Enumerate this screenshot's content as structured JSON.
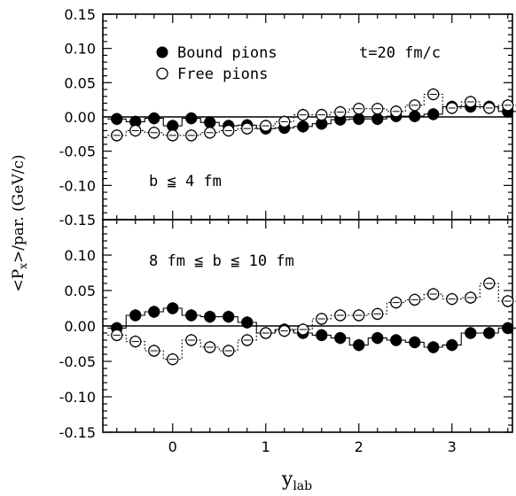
{
  "chart_data": [
    {
      "type": "scatter",
      "panel": "top",
      "xlim": [
        -0.75,
        3.65
      ],
      "ylim": [
        -0.15,
        0.15
      ],
      "y_ticks": [
        "0.15",
        "0.10",
        "0.05",
        "0.00",
        "-0.05",
        "-0.10",
        "-0.15"
      ],
      "x_ticks": [
        "0",
        "1",
        "2",
        "3"
      ],
      "legend": [
        {
          "name": "Bound pions",
          "marker": "filled-circle"
        },
        {
          "name": "Free pions",
          "marker": "open-circle"
        }
      ],
      "legend_placement": "top-right",
      "annotations": [
        "t=20 fm/c",
        "b ≦ 4 fm"
      ],
      "series": [
        {
          "name": "Bound pions",
          "marker": "filled",
          "x": [
            -0.6,
            -0.4,
            -0.2,
            0.0,
            0.2,
            0.4,
            0.6,
            0.8,
            1.0,
            1.2,
            1.4,
            1.6,
            1.8,
            2.0,
            2.2,
            2.4,
            2.6,
            2.8,
            3.0,
            3.2,
            3.4,
            3.6
          ],
          "y": [
            -0.003,
            -0.007,
            -0.002,
            -0.013,
            -0.002,
            -0.008,
            -0.013,
            -0.012,
            -0.017,
            -0.016,
            -0.014,
            -0.01,
            -0.004,
            -0.003,
            -0.003,
            0.001,
            0.001,
            0.004,
            0.015,
            0.015,
            0.015,
            0.008
          ]
        },
        {
          "name": "Free pions",
          "marker": "open",
          "x": [
            -0.6,
            -0.4,
            -0.2,
            0.0,
            0.2,
            0.4,
            0.6,
            0.8,
            1.0,
            1.2,
            1.4,
            1.6,
            1.8,
            2.0,
            2.2,
            2.4,
            2.6,
            2.8,
            3.0,
            3.2,
            3.4,
            3.6
          ],
          "y": [
            -0.027,
            -0.02,
            -0.023,
            -0.027,
            -0.027,
            -0.023,
            -0.02,
            -0.017,
            -0.013,
            -0.007,
            0.003,
            0.003,
            0.007,
            0.012,
            0.012,
            0.008,
            0.017,
            0.033,
            0.013,
            0.022,
            0.013,
            0.017
          ]
        }
      ]
    },
    {
      "type": "scatter",
      "panel": "bottom",
      "xlim": [
        -0.75,
        3.65
      ],
      "ylim": [
        -0.15,
        0.15
      ],
      "y_ticks": [
        "0.10",
        "0.05",
        "0.00",
        "-0.05",
        "-0.10",
        "-0.15"
      ],
      "x_ticks": [
        "0",
        "1",
        "2",
        "3"
      ],
      "xlabel_main": "y",
      "xlabel_sub": "lab",
      "ylabel": "<P",
      "ylabel_sub": "x",
      "ylabel_tail": ">/par. (GeV/c)",
      "annotations": [
        "8 fm ≦ b ≦ 10 fm"
      ],
      "series": [
        {
          "name": "Bound pions",
          "marker": "filled",
          "x": [
            -0.6,
            -0.4,
            -0.2,
            0.0,
            0.2,
            0.4,
            0.6,
            0.8,
            1.0,
            1.2,
            1.4,
            1.6,
            1.8,
            2.0,
            2.2,
            2.4,
            2.6,
            2.8,
            3.0,
            3.2,
            3.4,
            3.6
          ],
          "y": [
            -0.003,
            0.015,
            0.02,
            0.025,
            0.015,
            0.013,
            0.013,
            0.005,
            -0.01,
            -0.005,
            -0.01,
            -0.013,
            -0.017,
            -0.027,
            -0.017,
            -0.02,
            -0.023,
            -0.03,
            -0.027,
            -0.01,
            -0.01,
            -0.003
          ]
        },
        {
          "name": "Free pions",
          "marker": "open",
          "x": [
            -0.6,
            -0.4,
            -0.2,
            0.0,
            0.2,
            0.4,
            0.6,
            0.8,
            1.0,
            1.2,
            1.4,
            1.6,
            1.8,
            2.0,
            2.2,
            2.4,
            2.6,
            2.8,
            3.0,
            3.2,
            3.4,
            3.6
          ],
          "y": [
            -0.013,
            -0.022,
            -0.035,
            -0.047,
            -0.02,
            -0.03,
            -0.035,
            -0.02,
            -0.01,
            -0.007,
            -0.005,
            0.01,
            0.015,
            0.015,
            0.017,
            0.033,
            0.037,
            0.045,
            0.038,
            0.04,
            0.06,
            0.035
          ]
        }
      ]
    }
  ]
}
